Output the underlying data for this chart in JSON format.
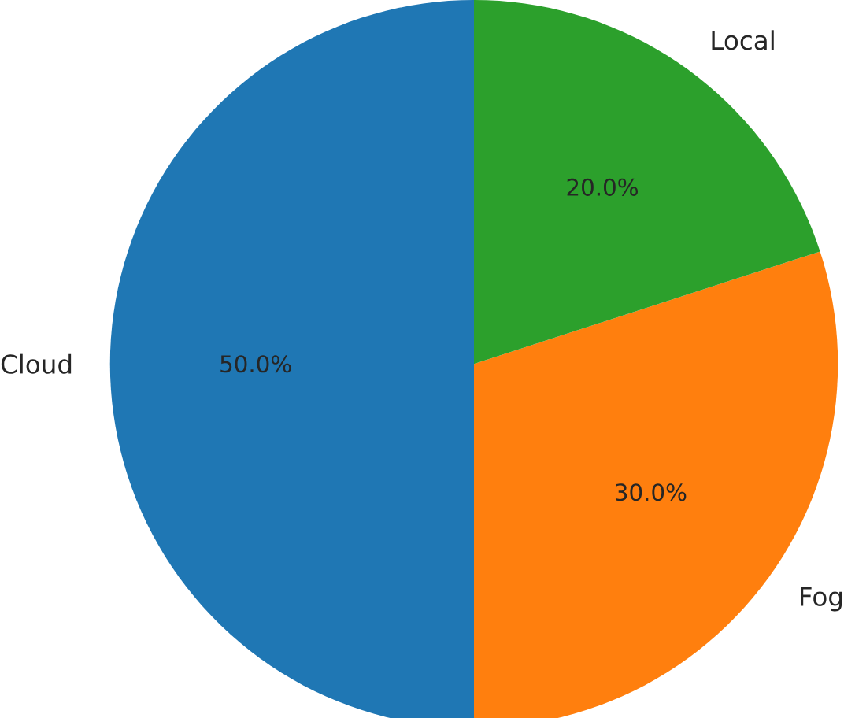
{
  "chart_data": {
    "type": "pie",
    "categories": [
      "Cloud",
      "Fog",
      "Local"
    ],
    "values": [
      50,
      30,
      20
    ],
    "colors": [
      "#1f77b4",
      "#ff7f0e",
      "#2ca02c"
    ],
    "value_labels": [
      "50.0%",
      "30.0%",
      "20.0%"
    ]
  }
}
